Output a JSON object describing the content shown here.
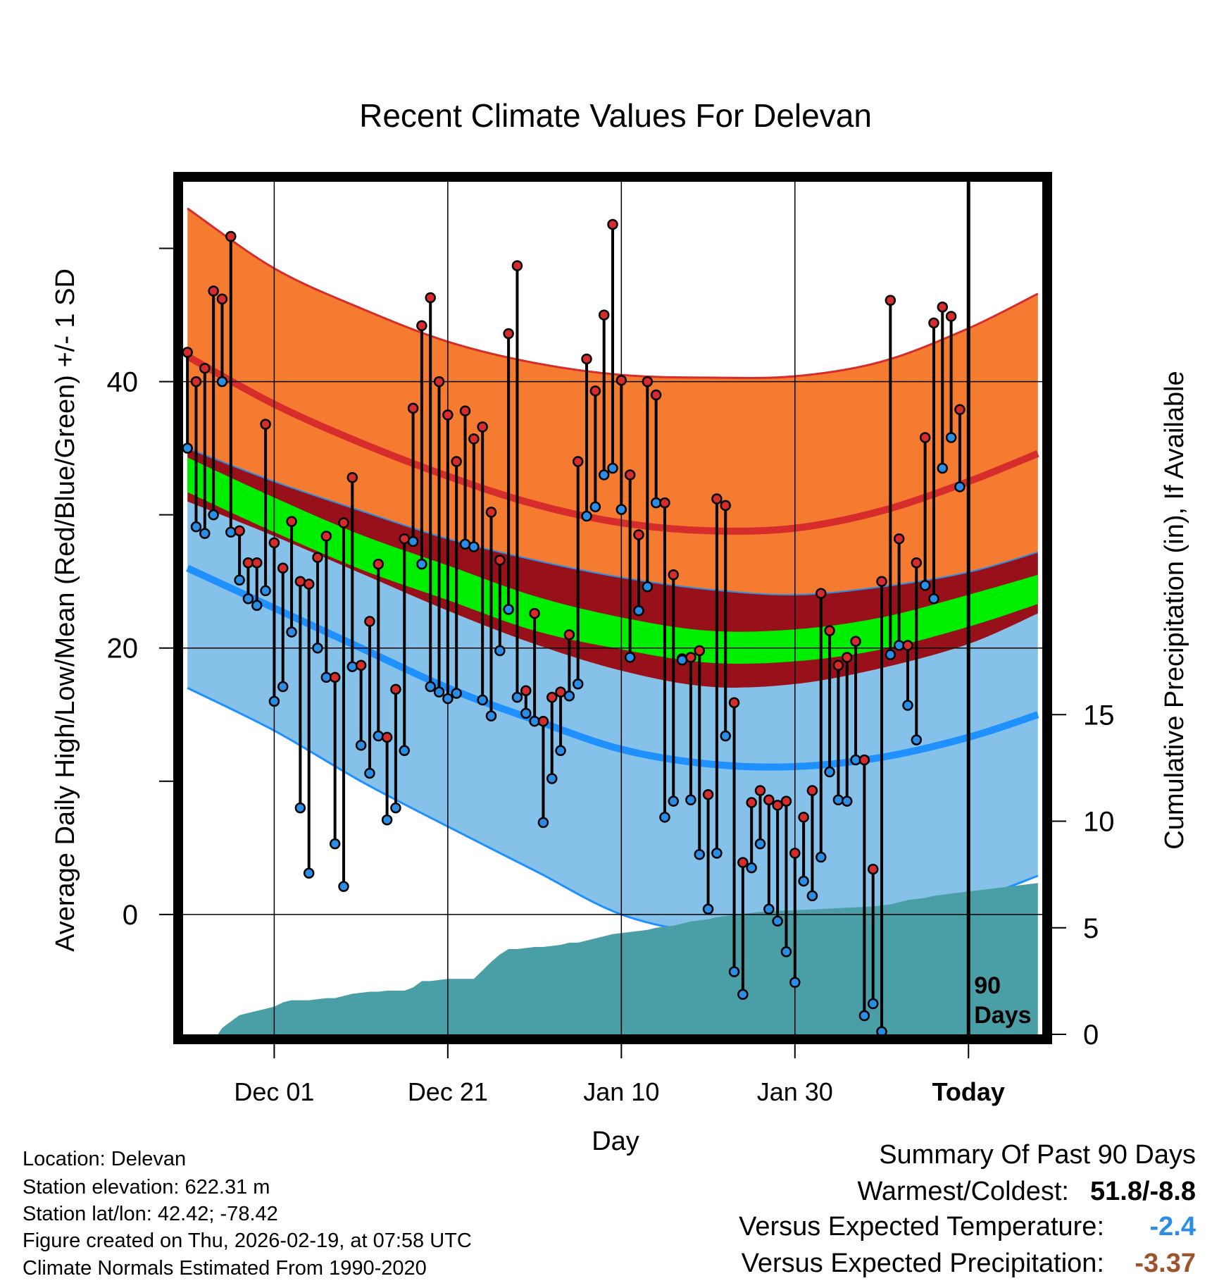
{
  "chart_data": {
    "type": "line",
    "title": "Recent Climate Values For Delevan",
    "xlabel": "Day",
    "ylabel_left": "Average Daily High/Low/Mean (Red/Blue/Green) +/- 1 SD",
    "ylabel_right": "Cumulative Precipitation (in), If Available",
    "x_range": [
      -10.5,
      88.5
    ],
    "ylim_left": [
      -9,
      55
    ],
    "ylim_right": [
      0,
      40
    ],
    "x_ticks": [
      {
        "x": 0,
        "label": "Dec 01"
      },
      {
        "x": 20,
        "label": "Dec 21"
      },
      {
        "x": 40,
        "label": "Jan 10"
      },
      {
        "x": 60,
        "label": "Jan 30"
      },
      {
        "x": 80,
        "label": "Today"
      }
    ],
    "y_ticks_left": [
      0,
      20,
      40
    ],
    "y_ticks_right": [
      0,
      5,
      10,
      15
    ],
    "today_x": 80,
    "today_label": [
      "90",
      "Days"
    ],
    "normals": {
      "x": [
        -10,
        0,
        10,
        20,
        30,
        40,
        50,
        60,
        70,
        80,
        88
      ],
      "high_mean": [
        41.9,
        38.3,
        35.4,
        32.9,
        30.8,
        29.4,
        28.8,
        29.0,
        30.3,
        32.5,
        34.6
      ],
      "high_sd_upper": [
        53.0,
        48.5,
        45.5,
        43.0,
        41.4,
        40.5,
        40.3,
        40.4,
        41.5,
        44.0,
        46.6
      ],
      "high_sd_lower": [
        35.0,
        32.5,
        30.3,
        28.2,
        26.6,
        25.3,
        24.4,
        24.0,
        24.6,
        25.7,
        27.2
      ],
      "mean": [
        33.0,
        30.0,
        27.2,
        24.9,
        22.6,
        21.1,
        20.1,
        20.2,
        21.1,
        22.8,
        24.4
      ],
      "mean_sd_upper": [
        34.3,
        31.3,
        28.5,
        26.2,
        23.9,
        22.3,
        21.3,
        21.4,
        22.3,
        24.0,
        25.5
      ],
      "mean_sd_lower": [
        31.7,
        28.7,
        25.9,
        23.6,
        21.3,
        19.9,
        18.9,
        19.0,
        19.9,
        21.6,
        23.3
      ],
      "low_mean": [
        26.0,
        23.0,
        20.0,
        17.0,
        14.6,
        12.4,
        11.3,
        11.1,
        11.8,
        13.3,
        15.0
      ],
      "low_sd_upper": [
        31.0,
        28.4,
        25.6,
        22.8,
        20.3,
        18.3,
        17.1,
        17.3,
        18.5,
        20.3,
        22.6
      ],
      "low_sd_lower": [
        17.0,
        13.8,
        10.0,
        6.6,
        3.3,
        0.0,
        -1.4,
        -1.5,
        -0.5,
        1.0,
        2.9
      ]
    },
    "daily": {
      "x_start": -10,
      "high": [
        42.2,
        40.0,
        41.0,
        46.8,
        46.2,
        50.9,
        28.8,
        26.4,
        26.4,
        36.8,
        27.9,
        26.0,
        29.5,
        25.0,
        24.8,
        26.8,
        28.4,
        17.8,
        29.4,
        32.8,
        18.7,
        22.0,
        26.3,
        13.3,
        16.9,
        28.2,
        38.0,
        44.2,
        46.3,
        40.0,
        37.5,
        34.0,
        37.8,
        35.7,
        36.6,
        30.2,
        26.6,
        43.6,
        48.7,
        16.8,
        22.6,
        14.5,
        16.3,
        16.7,
        21.0,
        34.0,
        41.7,
        39.3,
        45.0,
        51.8,
        40.1,
        33.0,
        28.5,
        40.0,
        39.0,
        30.9,
        25.5,
        19.2,
        19.3,
        19.8,
        9.0,
        31.2,
        30.7,
        15.9,
        3.9,
        8.4,
        9.3,
        8.6,
        8.2,
        8.5,
        4.6,
        7.3,
        9.3,
        24.1,
        21.3,
        18.7,
        19.3,
        20.5,
        11.6,
        3.4,
        25.0,
        46.1,
        28.2,
        20.2,
        26.4,
        35.8,
        44.4,
        45.6,
        44.9,
        37.9
      ],
      "low": [
        35.0,
        29.1,
        28.6,
        30.0,
        40.0,
        28.7,
        25.1,
        23.7,
        23.2,
        24.3,
        16.0,
        17.1,
        21.2,
        8.0,
        3.1,
        20.0,
        17.8,
        5.3,
        2.1,
        18.6,
        12.7,
        10.6,
        13.4,
        7.1,
        8.0,
        12.3,
        28.0,
        26.3,
        17.1,
        16.7,
        16.2,
        16.6,
        27.8,
        27.6,
        16.1,
        14.9,
        19.8,
        22.9,
        16.3,
        15.1,
        14.5,
        6.9,
        10.2,
        12.3,
        16.4,
        17.3,
        29.9,
        30.6,
        33.0,
        33.5,
        30.4,
        19.3,
        22.8,
        24.6,
        30.9,
        7.3,
        8.5,
        19.1,
        8.6,
        4.5,
        0.4,
        4.6,
        13.4,
        -4.3,
        -6.0,
        3.5,
        5.3,
        0.4,
        -0.5,
        -2.8,
        -5.1,
        2.5,
        1.4,
        4.3,
        10.7,
        8.6,
        8.5,
        11.6,
        -7.6,
        -6.7,
        -8.8,
        19.5,
        20.2,
        15.7,
        13.1,
        24.7,
        23.7,
        33.5,
        35.8,
        32.1
      ]
    },
    "precip_cumulative": {
      "x": [
        -6.5,
        -6,
        -5,
        -4,
        -3,
        -2,
        -1,
        0,
        1,
        2,
        3,
        4,
        5,
        6,
        7,
        8,
        9,
        10,
        11,
        12,
        13,
        14,
        15,
        16,
        17,
        18,
        19,
        20,
        21,
        22,
        23,
        24,
        25,
        26,
        27,
        28,
        29,
        30,
        31,
        32,
        33,
        34,
        35,
        36,
        37,
        38,
        39,
        40,
        41,
        42,
        43,
        44,
        45,
        46,
        47,
        48,
        49,
        50,
        51,
        52,
        53,
        54,
        55,
        56,
        57,
        58,
        59,
        60,
        61,
        62,
        63,
        64,
        65,
        66,
        67,
        68,
        69,
        70,
        71,
        72,
        73,
        74,
        75,
        76,
        77,
        78,
        79,
        80,
        81,
        82,
        83,
        84,
        85,
        86,
        87,
        88
      ],
      "values": [
        0,
        0.3,
        0.6,
        0.9,
        1.0,
        1.1,
        1.2,
        1.3,
        1.5,
        1.6,
        1.6,
        1.6,
        1.65,
        1.7,
        1.7,
        1.8,
        1.9,
        1.95,
        2.0,
        2.0,
        2.05,
        2.05,
        2.05,
        2.2,
        2.5,
        2.5,
        2.55,
        2.6,
        2.6,
        2.6,
        2.6,
        3.0,
        3.4,
        3.75,
        4.0,
        4.0,
        4.05,
        4.1,
        4.1,
        4.15,
        4.2,
        4.3,
        4.3,
        4.4,
        4.5,
        4.6,
        4.7,
        4.75,
        4.8,
        4.85,
        4.9,
        5.0,
        5.05,
        5.1,
        5.2,
        5.3,
        5.35,
        5.4,
        5.5,
        5.55,
        5.6,
        5.65,
        5.7,
        5.75,
        5.75,
        5.8,
        5.8,
        5.82,
        5.84,
        5.86,
        5.88,
        5.9,
        5.92,
        5.94,
        5.96,
        5.98,
        6.0,
        6.05,
        6.1,
        6.2,
        6.3,
        6.35,
        6.4,
        6.5,
        6.55,
        6.6,
        6.65,
        6.7,
        6.75,
        6.8,
        6.85,
        6.9,
        6.95,
        7.0,
        7.05,
        7.1
      ]
    },
    "colors": {
      "high_band": "#f47b2f",
      "high_line": "#d62c2c",
      "mean_band": "#97101a",
      "mean_line": "#00ee00",
      "low_band": "#85c1e9",
      "low_line": "#1e90ff",
      "precip": "#4a9ea5",
      "high_marker": "#d62c2c",
      "low_marker": "#2b8ee6"
    }
  },
  "meta": {
    "location": "Location: Delevan",
    "elevation": "Station elevation: 622.31 m",
    "latlon": "Station lat/lon: 42.42; -78.42",
    "created": "Figure created on Thu, 2026-02-19, at 07:58 UTC",
    "normals": "Climate Normals Estimated From 1990-2020"
  },
  "summary": {
    "title": "Summary Of Past 90 Days",
    "warmest_label": "Warmest/Coldest:",
    "warmest_value": "51.8/-8.8",
    "temp_label": "Versus Expected Temperature:",
    "temp_value": "-2.4",
    "temp_color": "#2b8ee6",
    "precip_label": "Versus Expected Precipitation:",
    "precip_value": "-3.37",
    "precip_color": "#a0522d"
  }
}
